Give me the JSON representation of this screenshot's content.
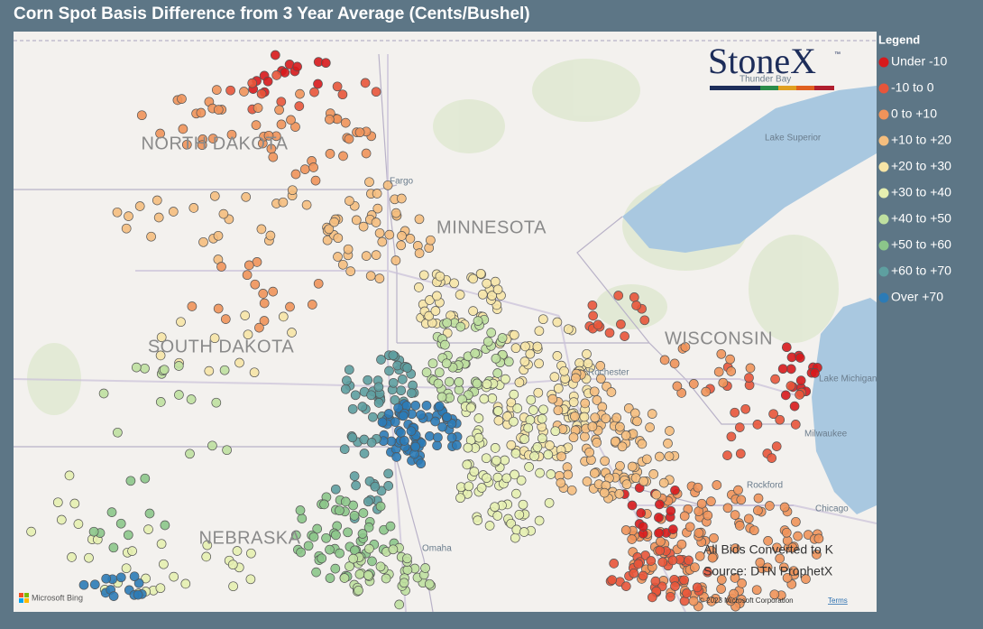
{
  "title": "Corn Spot Basis Difference from 3 Year Average (Cents/Bushel)",
  "legend": {
    "title": "Legend",
    "items": [
      {
        "label": "Under -10",
        "color": "#d7191c"
      },
      {
        "label": "-10 to 0",
        "color": "#e8553a"
      },
      {
        "label": "0 to +10",
        "color": "#f0935a"
      },
      {
        "label": "+10 to +20",
        "color": "#f5be7e"
      },
      {
        "label": "+20 to +30",
        "color": "#f6e4a6"
      },
      {
        "label": "+30 to +40",
        "color": "#e6efb0"
      },
      {
        "label": "+40 to +50",
        "color": "#bfe0a0"
      },
      {
        "label": "+50 to +60",
        "color": "#8cc68a"
      },
      {
        "label": "+60 to +70",
        "color": "#5e9fa0"
      },
      {
        "label": "Over +70",
        "color": "#2c7bb6"
      }
    ]
  },
  "logo": {
    "name": "StoneX",
    "mark": "™"
  },
  "map_labels": {
    "states": [
      "NORTH DAKOTA",
      "MINNESOTA",
      "SOUTH DAKOTA",
      "WISCONSIN",
      "NEBRASKA"
    ],
    "places": [
      "Thunder Bay",
      "Lake Superior",
      "Fargo",
      "Lake Michigan",
      "Milwaukee",
      "Rockford",
      "Chicago",
      "Rochester",
      "Omaha"
    ]
  },
  "notes": [
    "All Bids Converted to K",
    "Source: DTN ProphetX"
  ],
  "attribution": {
    "provider": "Microsoft Bing",
    "copyright": "© 2023 Microsoft Corporation",
    "terms": "Terms"
  }
}
